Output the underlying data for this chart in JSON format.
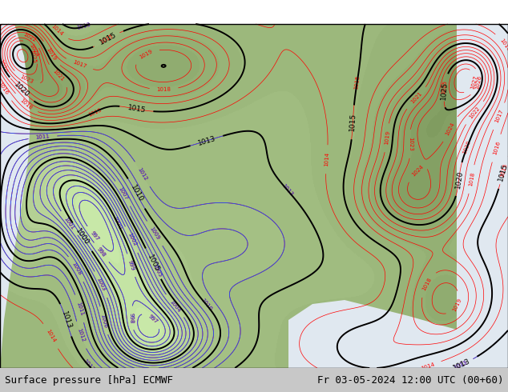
{
  "title_left": "Surface pressure [hPa] ECMWF",
  "title_right": "Fr 03-05-2024 12:00 UTC (00+60)",
  "fig_width": 6.34,
  "fig_height": 4.9,
  "dpi": 100,
  "footer_fontsize": 9,
  "footer_bg": "#c8c8c8",
  "land_green": "#b8d898",
  "ocean_color": "#e0e8f0"
}
